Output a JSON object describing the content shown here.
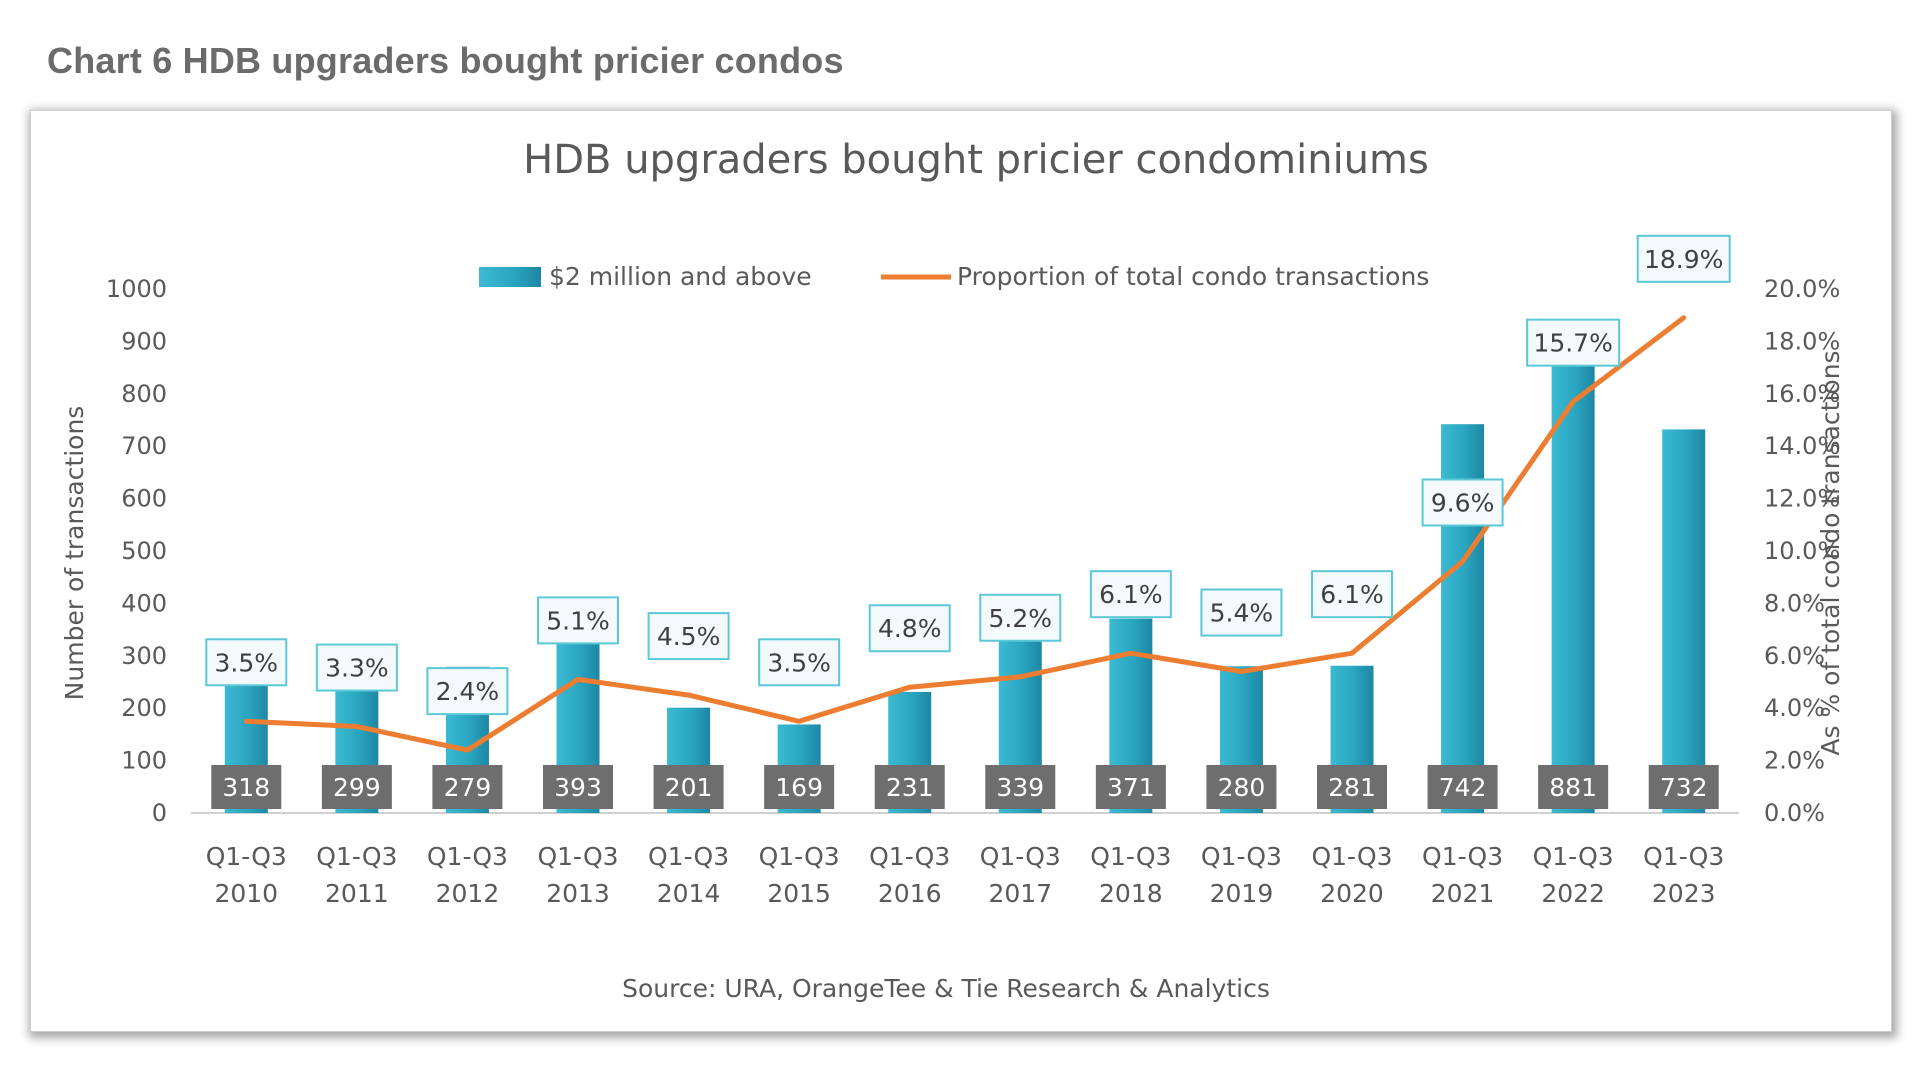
{
  "document": {
    "heading": "Chart 6 HDB upgraders bought pricier condos"
  },
  "colors": {
    "bar": "#2ba8c3",
    "bar_dark": "#1f86a3",
    "line": "#ed7d31",
    "value_label_bg": "#6e6e6e",
    "pct_label_border": "#5bc8d6",
    "text": "#595959",
    "axis": "#d0d0d0"
  },
  "chart_data": {
    "type": "bar",
    "title": "HDB upgraders bought pricier condominiums",
    "categories": [
      [
        "Q1-Q3",
        "2010"
      ],
      [
        "Q1-Q3",
        "2011"
      ],
      [
        "Q1-Q3",
        "2012"
      ],
      [
        "Q1-Q3",
        "2013"
      ],
      [
        "Q1-Q3",
        "2014"
      ],
      [
        "Q1-Q3",
        "2015"
      ],
      [
        "Q1-Q3",
        "2016"
      ],
      [
        "Q1-Q3",
        "2017"
      ],
      [
        "Q1-Q3",
        "2018"
      ],
      [
        "Q1-Q3",
        "2019"
      ],
      [
        "Q1-Q3",
        "2020"
      ],
      [
        "Q1-Q3",
        "2021"
      ],
      [
        "Q1-Q3",
        "2022"
      ],
      [
        "Q1-Q3",
        "2023"
      ]
    ],
    "series": [
      {
        "name": "$2 million and above",
        "type": "bar",
        "axis": "left",
        "values": [
          318,
          299,
          279,
          393,
          201,
          169,
          231,
          339,
          371,
          280,
          281,
          742,
          881,
          732
        ],
        "labels": [
          "318",
          "299",
          "279",
          "393",
          "201",
          "169",
          "231",
          "339",
          "371",
          "280",
          "281",
          "742",
          "881",
          "732"
        ]
      },
      {
        "name": "Proportion of total condo transactions",
        "type": "line",
        "axis": "right",
        "values": [
          3.5,
          3.3,
          2.4,
          5.1,
          4.5,
          3.5,
          4.8,
          5.2,
          6.1,
          5.4,
          6.1,
          9.6,
          15.7,
          18.9
        ],
        "labels": [
          "3.5%",
          "3.3%",
          "2.4%",
          "5.1%",
          "4.5%",
          "3.5%",
          "4.8%",
          "5.2%",
          "6.1%",
          "5.4%",
          "6.1%",
          "9.6%",
          "15.7%",
          "18.9%"
        ]
      }
    ],
    "ylabel": "Number of transactions",
    "ylim": [
      0,
      1000
    ],
    "yticks": [
      "0",
      "100",
      "200",
      "300",
      "400",
      "500",
      "600",
      "700",
      "800",
      "900",
      "1000"
    ],
    "y2label": "As % of total condo transactions",
    "y2lim": [
      0,
      20
    ],
    "y2ticks": [
      "0.0%",
      "2.0%",
      "4.0%",
      "6.0%",
      "8.0%",
      "10.0%",
      "12.0%",
      "14.0%",
      "16.0%",
      "18.0%",
      "20.0%"
    ],
    "legend_position": "top",
    "grid": false,
    "source": "Source: URA, OrangeTee & Tie Research & Analytics"
  }
}
